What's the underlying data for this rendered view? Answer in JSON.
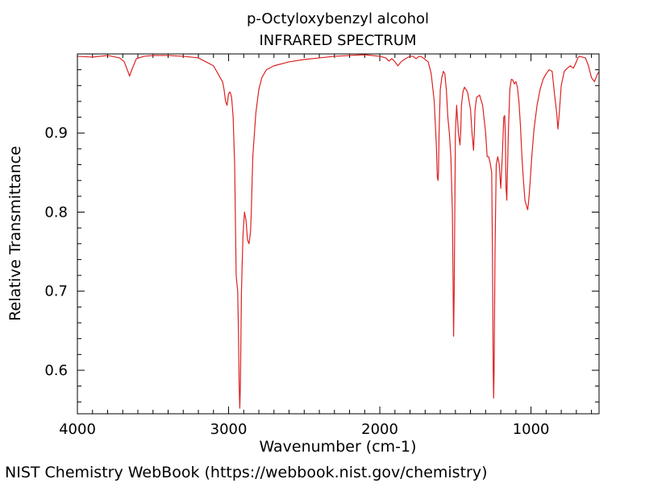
{
  "chart_data": {
    "type": "line",
    "title": "p-Octyloxybenzyl alcohol",
    "subtitle": "INFRARED SPECTRUM",
    "xlabel": "Wavenumber (cm-1)",
    "ylabel": "Relative Transmittance",
    "xlim": [
      4000,
      550
    ],
    "ylim": [
      0.545,
      1.0
    ],
    "x_ticks": [
      4000,
      3000,
      2000,
      1000
    ],
    "x_tick_labels": [
      "4000",
      "3000",
      "2000",
      "1000"
    ],
    "y_ticks": [
      0.6,
      0.7,
      0.8,
      0.9
    ],
    "y_tick_labels": [
      "0.6",
      "0.7",
      "0.8",
      "0.9"
    ],
    "grid": false,
    "line_color": "#dd2222",
    "series": [
      {
        "x": [
          4000,
          3900,
          3800,
          3720,
          3690,
          3670,
          3655,
          3640,
          3610,
          3560,
          3500,
          3400,
          3300,
          3200,
          3150,
          3100,
          3070,
          3050,
          3040,
          3030,
          3020,
          3010,
          3000,
          2990,
          2980,
          2970,
          2960,
          2950,
          2940,
          2935,
          2930,
          2926,
          2922,
          2915,
          2905,
          2895,
          2885,
          2875,
          2865,
          2855,
          2850,
          2840,
          2820,
          2800,
          2780,
          2750,
          2700,
          2600,
          2500,
          2400,
          2300,
          2200,
          2100,
          2000,
          1960,
          1940,
          1920,
          1900,
          1880,
          1860,
          1830,
          1800,
          1780,
          1760,
          1740,
          1720,
          1700,
          1680,
          1660,
          1640,
          1625,
          1620,
          1615,
          1612,
          1608,
          1600,
          1590,
          1580,
          1570,
          1560,
          1550,
          1540,
          1530,
          1520,
          1515,
          1512,
          1508,
          1500,
          1492,
          1480,
          1470,
          1465,
          1460,
          1450,
          1440,
          1420,
          1400,
          1390,
          1380,
          1375,
          1370,
          1360,
          1340,
          1320,
          1300,
          1290,
          1280,
          1270,
          1260,
          1255,
          1250,
          1247,
          1244,
          1238,
          1230,
          1220,
          1210,
          1200,
          1190,
          1180,
          1174,
          1170,
          1165,
          1160,
          1150,
          1140,
          1130,
          1120,
          1110,
          1100,
          1090,
          1080,
          1070,
          1060,
          1050,
          1040,
          1030,
          1022,
          1015,
          1005,
          995,
          980,
          960,
          940,
          920,
          900,
          880,
          860,
          845,
          830,
          822,
          815,
          800,
          780,
          760,
          740,
          720,
          700,
          690,
          680,
          660,
          640,
          620,
          600,
          580,
          570,
          560,
          550
        ],
        "y": [
          0.997,
          0.996,
          0.998,
          0.995,
          0.99,
          0.98,
          0.972,
          0.98,
          0.994,
          0.997,
          0.998,
          0.998,
          0.997,
          0.995,
          0.99,
          0.985,
          0.975,
          0.968,
          0.965,
          0.955,
          0.94,
          0.935,
          0.95,
          0.952,
          0.945,
          0.92,
          0.86,
          0.72,
          0.7,
          0.65,
          0.58,
          0.552,
          0.58,
          0.7,
          0.77,
          0.8,
          0.79,
          0.765,
          0.76,
          0.775,
          0.8,
          0.87,
          0.925,
          0.955,
          0.97,
          0.98,
          0.985,
          0.99,
          0.993,
          0.995,
          0.997,
          0.998,
          0.999,
          0.997,
          0.995,
          0.991,
          0.994,
          0.99,
          0.985,
          0.99,
          0.994,
          0.997,
          0.997,
          0.994,
          0.997,
          0.996,
          0.993,
          0.99,
          0.975,
          0.94,
          0.88,
          0.845,
          0.84,
          0.85,
          0.9,
          0.955,
          0.97,
          0.978,
          0.975,
          0.955,
          0.92,
          0.9,
          0.87,
          0.8,
          0.7,
          0.643,
          0.7,
          0.9,
          0.935,
          0.9,
          0.885,
          0.9,
          0.935,
          0.952,
          0.958,
          0.952,
          0.93,
          0.9,
          0.878,
          0.9,
          0.93,
          0.945,
          0.948,
          0.935,
          0.9,
          0.87,
          0.87,
          0.862,
          0.85,
          0.75,
          0.6,
          0.565,
          0.6,
          0.75,
          0.86,
          0.87,
          0.86,
          0.83,
          0.87,
          0.92,
          0.922,
          0.9,
          0.83,
          0.815,
          0.9,
          0.955,
          0.968,
          0.967,
          0.962,
          0.965,
          0.958,
          0.94,
          0.91,
          0.87,
          0.84,
          0.815,
          0.808,
          0.803,
          0.815,
          0.84,
          0.87,
          0.905,
          0.935,
          0.955,
          0.968,
          0.975,
          0.98,
          0.978,
          0.95,
          0.925,
          0.905,
          0.92,
          0.96,
          0.978,
          0.982,
          0.985,
          0.982,
          0.99,
          0.995,
          0.997,
          0.996,
          0.995,
          0.985,
          0.97,
          0.965,
          0.97,
          0.975,
          0.977
        ]
      }
    ]
  },
  "footer": {
    "credit": "NIST Chemistry WebBook (https://webbook.nist.gov/chemistry)"
  }
}
